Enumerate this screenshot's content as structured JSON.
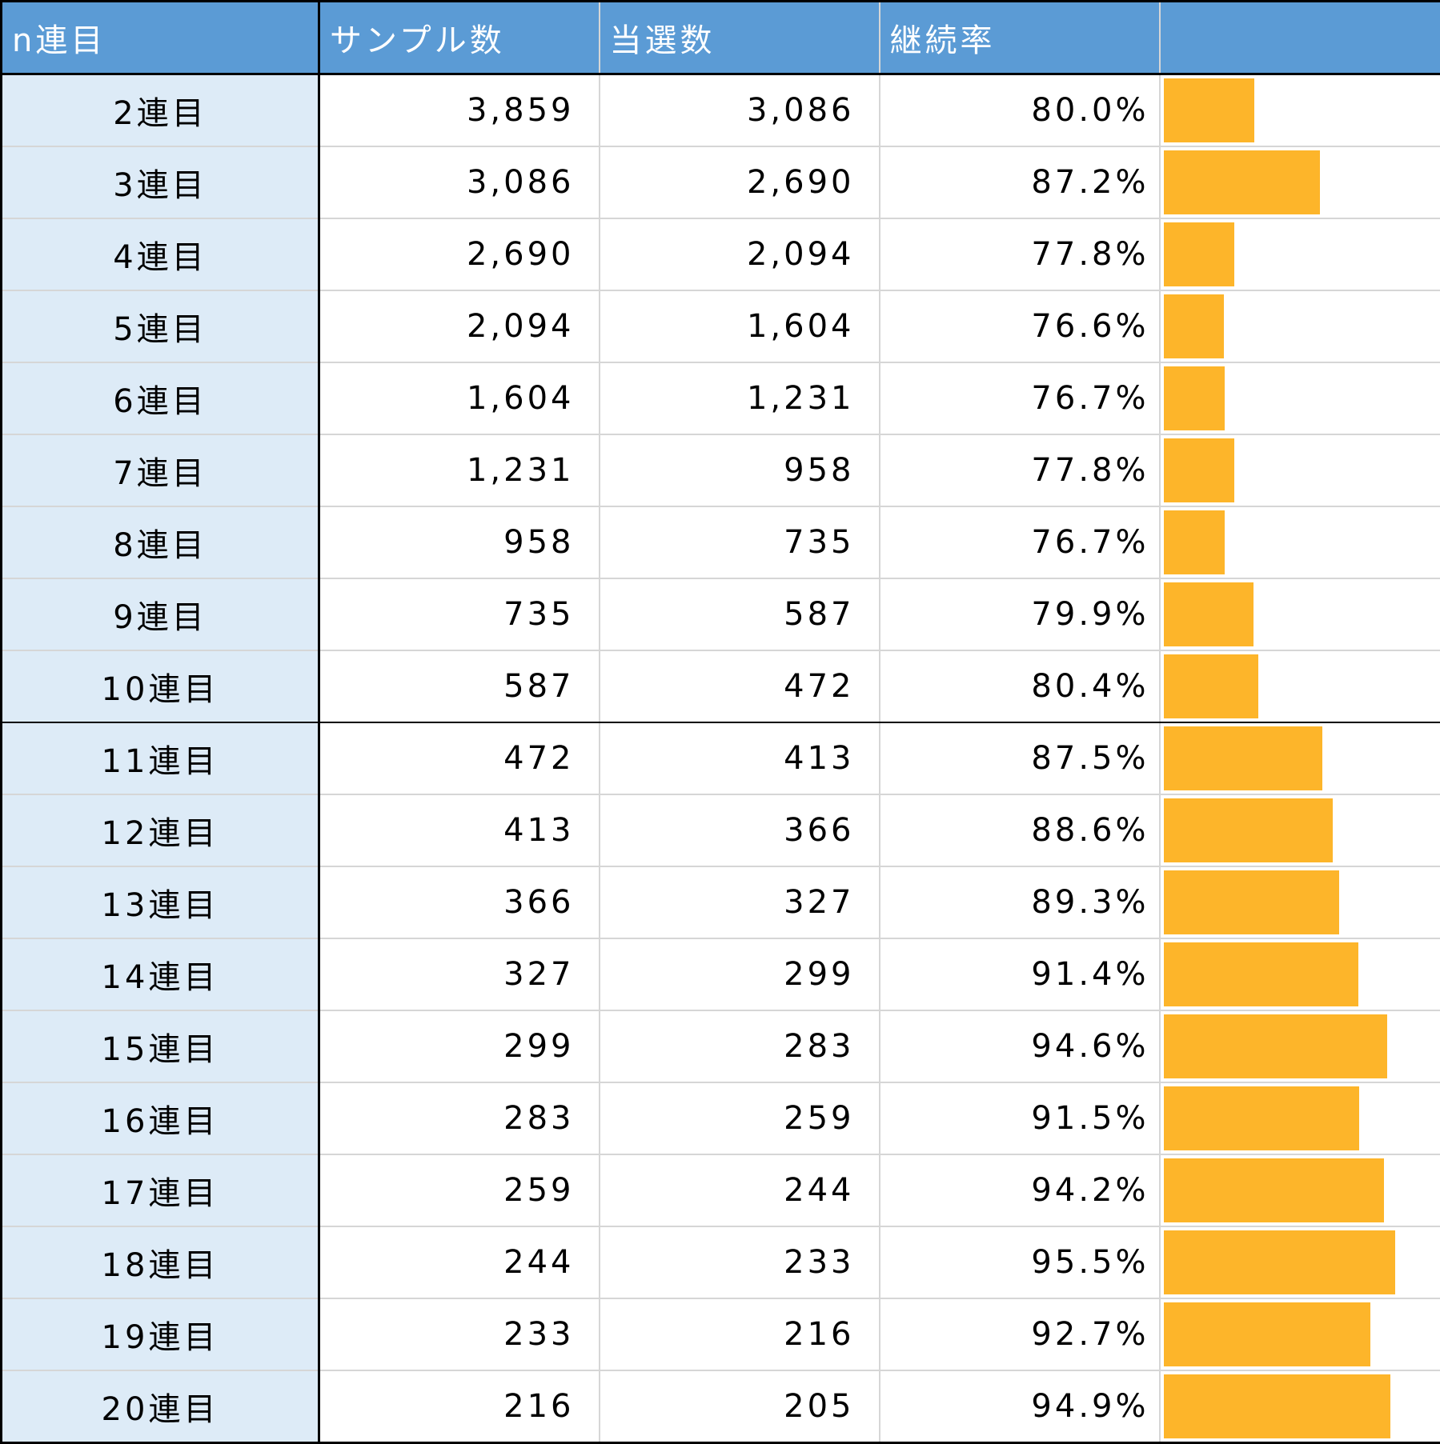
{
  "headers": [
    "n連目",
    "サンプル数",
    "当選数",
    "継続率",
    ""
  ],
  "bar_color": "#fdb52a",
  "bar_scale": {
    "min_percent": 70,
    "max_percent": 100
  },
  "rows": [
    {
      "label": "2連目",
      "samples": "3,859",
      "wins": "3,086",
      "rate": "80.0%",
      "rate_value": 80.0
    },
    {
      "label": "3連目",
      "samples": "3,086",
      "wins": "2,690",
      "rate": "87.2%",
      "rate_value": 87.2
    },
    {
      "label": "4連目",
      "samples": "2,690",
      "wins": "2,094",
      "rate": "77.8%",
      "rate_value": 77.8
    },
    {
      "label": "5連目",
      "samples": "2,094",
      "wins": "1,604",
      "rate": "76.6%",
      "rate_value": 76.6
    },
    {
      "label": "6連目",
      "samples": "1,604",
      "wins": "1,231",
      "rate": "76.7%",
      "rate_value": 76.7
    },
    {
      "label": "7連目",
      "samples": "1,231",
      "wins": "958",
      "rate": "77.8%",
      "rate_value": 77.8
    },
    {
      "label": "8連目",
      "samples": "958",
      "wins": "735",
      "rate": "76.7%",
      "rate_value": 76.7
    },
    {
      "label": "9連目",
      "samples": "735",
      "wins": "587",
      "rate": "79.9%",
      "rate_value": 79.9
    },
    {
      "label": "10連目",
      "samples": "587",
      "wins": "472",
      "rate": "80.4%",
      "rate_value": 80.4
    },
    {
      "label": "11連目",
      "samples": "472",
      "wins": "413",
      "rate": "87.5%",
      "rate_value": 87.5
    },
    {
      "label": "12連目",
      "samples": "413",
      "wins": "366",
      "rate": "88.6%",
      "rate_value": 88.6
    },
    {
      "label": "13連目",
      "samples": "366",
      "wins": "327",
      "rate": "89.3%",
      "rate_value": 89.3
    },
    {
      "label": "14連目",
      "samples": "327",
      "wins": "299",
      "rate": "91.4%",
      "rate_value": 91.4
    },
    {
      "label": "15連目",
      "samples": "299",
      "wins": "283",
      "rate": "94.6%",
      "rate_value": 94.6
    },
    {
      "label": "16連目",
      "samples": "283",
      "wins": "259",
      "rate": "91.5%",
      "rate_value": 91.5
    },
    {
      "label": "17連目",
      "samples": "259",
      "wins": "244",
      "rate": "94.2%",
      "rate_value": 94.2
    },
    {
      "label": "18連目",
      "samples": "244",
      "wins": "233",
      "rate": "95.5%",
      "rate_value": 95.5
    },
    {
      "label": "19連目",
      "samples": "233",
      "wins": "216",
      "rate": "92.7%",
      "rate_value": 92.7
    },
    {
      "label": "20連目",
      "samples": "216",
      "wins": "205",
      "rate": "94.9%",
      "rate_value": 94.9
    }
  ]
}
